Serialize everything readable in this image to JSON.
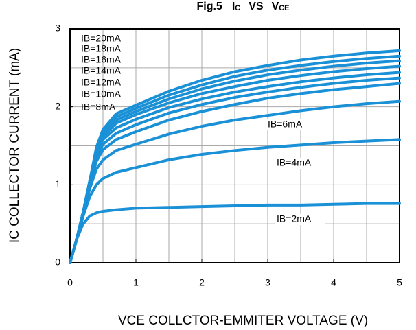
{
  "chart_data": {
    "type": "line",
    "title": {
      "main": "Fig.5",
      "y": "I",
      "y_sub": "C",
      "vs": "VS",
      "x": "V",
      "x_sub": "CE"
    },
    "y_label": "IC COLLECTOR CURRENT (mA)",
    "x_label": "VCE COLLCTOR-EMMITER VOLTAGE (V)",
    "xlim": [
      0,
      5
    ],
    "ylim": [
      0,
      3
    ],
    "xticks": [
      0,
      1,
      2,
      3,
      4,
      5
    ],
    "yticks": [
      0,
      1,
      2,
      3
    ],
    "x_grid": [
      0.5,
      1,
      1.5,
      2,
      2.5,
      3,
      3.5,
      4,
      4.5
    ],
    "y_grid": [
      0.5,
      1,
      1.5,
      2,
      2.5
    ],
    "x": [
      0,
      0.1,
      0.2,
      0.3,
      0.4,
      0.5,
      0.7,
      1,
      1.5,
      2,
      2.5,
      3,
      3.5,
      4,
      4.5,
      5
    ],
    "series": [
      {
        "name": "IB=2mA",
        "color": "#1a90d6",
        "values": [
          0,
          0.3,
          0.5,
          0.6,
          0.64,
          0.66,
          0.68,
          0.7,
          0.71,
          0.72,
          0.73,
          0.74,
          0.74,
          0.75,
          0.76,
          0.76
        ]
      },
      {
        "name": "IB=4mA",
        "color": "#1a90d6",
        "values": [
          0,
          0.3,
          0.6,
          0.85,
          1.0,
          1.08,
          1.16,
          1.22,
          1.32,
          1.39,
          1.44,
          1.48,
          1.51,
          1.54,
          1.56,
          1.58
        ]
      },
      {
        "name": "IB=6mA",
        "color": "#1a90d6",
        "values": [
          0,
          0.3,
          0.65,
          0.95,
          1.2,
          1.32,
          1.44,
          1.52,
          1.65,
          1.75,
          1.83,
          1.89,
          1.95,
          2.0,
          2.04,
          2.07
        ]
      },
      {
        "name": "IB=8mA",
        "color": "#1a90d6",
        "values": [
          0,
          0.3,
          0.65,
          1.0,
          1.3,
          1.45,
          1.58,
          1.68,
          1.83,
          1.94,
          2.03,
          2.11,
          2.17,
          2.22,
          2.26,
          2.3
        ]
      },
      {
        "name": "IB=10mA",
        "color": "#1a90d6",
        "values": [
          0,
          0.3,
          0.65,
          1.05,
          1.35,
          1.52,
          1.66,
          1.77,
          1.92,
          2.03,
          2.12,
          2.19,
          2.25,
          2.3,
          2.34,
          2.37
        ]
      },
      {
        "name": "IB=12mA",
        "color": "#1a90d6",
        "values": [
          0,
          0.3,
          0.65,
          1.05,
          1.4,
          1.58,
          1.73,
          1.84,
          1.99,
          2.1,
          2.19,
          2.26,
          2.32,
          2.37,
          2.41,
          2.44
        ]
      },
      {
        "name": "IB=14mA",
        "color": "#1a90d6",
        "values": [
          0,
          0.3,
          0.65,
          1.05,
          1.42,
          1.62,
          1.79,
          1.9,
          2.05,
          2.17,
          2.26,
          2.34,
          2.4,
          2.45,
          2.49,
          2.52
        ]
      },
      {
        "name": "IB=16mA",
        "color": "#1a90d6",
        "values": [
          0,
          0.3,
          0.65,
          1.05,
          1.44,
          1.65,
          1.83,
          1.94,
          2.1,
          2.23,
          2.33,
          2.41,
          2.47,
          2.52,
          2.56,
          2.59
        ]
      },
      {
        "name": "IB=18mA",
        "color": "#1a90d6",
        "values": [
          0,
          0.3,
          0.65,
          1.05,
          1.46,
          1.68,
          1.87,
          1.98,
          2.15,
          2.28,
          2.39,
          2.47,
          2.53,
          2.58,
          2.62,
          2.65
        ]
      },
      {
        "name": "IB=20mA",
        "color": "#1a90d6",
        "values": [
          0,
          0.3,
          0.65,
          1.05,
          1.48,
          1.71,
          1.91,
          2.02,
          2.2,
          2.34,
          2.45,
          2.53,
          2.6,
          2.65,
          2.69,
          2.72
        ]
      }
    ]
  }
}
